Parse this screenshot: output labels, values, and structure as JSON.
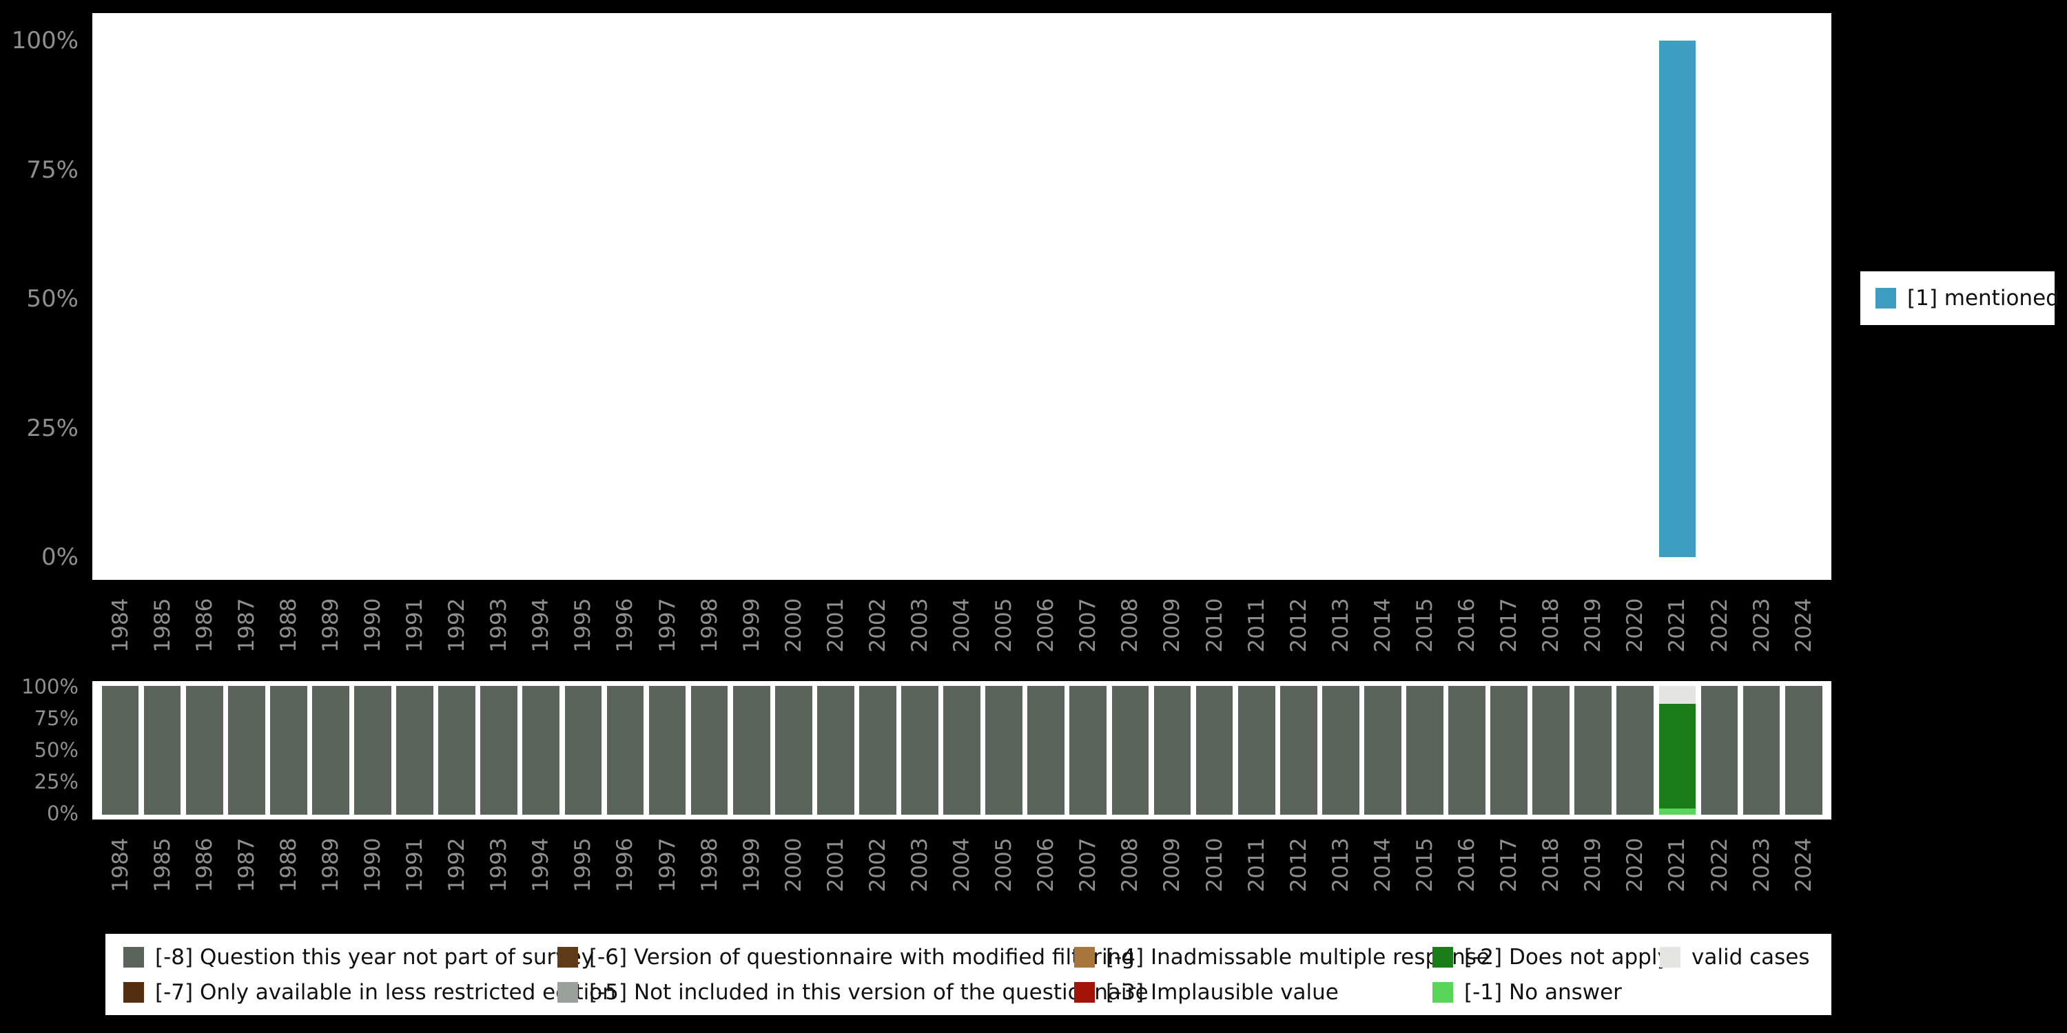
{
  "style": {
    "background": "#000000",
    "panel_background": "#ffffff",
    "axis_text_color": "#8f8f8f",
    "bar_teal": "#3d9ec1"
  },
  "right_legend": {
    "items": [
      {
        "label": "[1] mentioned",
        "color": "#3d9ec1"
      }
    ]
  },
  "bottom_legend": {
    "items": [
      {
        "label": "[-8] Question this year not part of survey",
        "color": "#5a645b"
      },
      {
        "label": "[-7] Only available in less restricted edition",
        "color": "#542e10"
      },
      {
        "label": "[-6] Version of questionnaire with modified filtering",
        "color": "#5e3a17"
      },
      {
        "label": "[-5] Not included in this version of the questionnaire",
        "color": "#9aa09a"
      },
      {
        "label": "[-4] Inadmissable multiple response",
        "color": "#a6763d"
      },
      {
        "label": "[-3] Implausible value",
        "color": "#a31208"
      },
      {
        "label": "[-2] Does not apply",
        "color": "#1a7d1a"
      },
      {
        "label": "[-1] No answer",
        "color": "#59d659"
      },
      {
        "label": "valid cases",
        "color": "#e4e4e1"
      }
    ]
  },
  "chart_data": [
    {
      "type": "bar",
      "title": "",
      "xlabel": "",
      "ylabel": "",
      "ylim": [
        0,
        100
      ],
      "yticks": [
        "0%",
        "25%",
        "50%",
        "75%",
        "100%"
      ],
      "grid": false,
      "legend_position": "right",
      "x": [
        "1984",
        "1985",
        "1986",
        "1987",
        "1988",
        "1989",
        "1990",
        "1991",
        "1992",
        "1993",
        "1994",
        "1995",
        "1996",
        "1997",
        "1998",
        "1999",
        "2000",
        "2001",
        "2002",
        "2003",
        "2004",
        "2005",
        "2006",
        "2007",
        "2008",
        "2009",
        "2010",
        "2011",
        "2012",
        "2013",
        "2014",
        "2015",
        "2016",
        "2017",
        "2018",
        "2019",
        "2020",
        "2021",
        "2022",
        "2023",
        "2024"
      ],
      "series": [
        {
          "name": "[1] mentioned",
          "color": "#3d9ec1",
          "values": [
            0,
            0,
            0,
            0,
            0,
            0,
            0,
            0,
            0,
            0,
            0,
            0,
            0,
            0,
            0,
            0,
            0,
            0,
            0,
            0,
            0,
            0,
            0,
            0,
            0,
            0,
            0,
            0,
            0,
            0,
            0,
            0,
            0,
            0,
            0,
            0,
            0,
            100,
            0,
            0,
            0
          ]
        }
      ]
    },
    {
      "type": "bar",
      "stacked": true,
      "title": "",
      "xlabel": "",
      "ylabel": "",
      "ylim": [
        0,
        100
      ],
      "yticks": [
        "0%",
        "25%",
        "50%",
        "75%",
        "100%"
      ],
      "grid": false,
      "legend_position": "bottom",
      "x": [
        "1984",
        "1985",
        "1986",
        "1987",
        "1988",
        "1989",
        "1990",
        "1991",
        "1992",
        "1993",
        "1994",
        "1995",
        "1996",
        "1997",
        "1998",
        "1999",
        "2000",
        "2001",
        "2002",
        "2003",
        "2004",
        "2005",
        "2006",
        "2007",
        "2008",
        "2009",
        "2010",
        "2011",
        "2012",
        "2013",
        "2014",
        "2015",
        "2016",
        "2017",
        "2018",
        "2019",
        "2020",
        "2021",
        "2022",
        "2023",
        "2024"
      ],
      "default_stack": [
        {
          "name": "[-8] Question this year not part of survey",
          "value": 100,
          "color": "#5a645b"
        }
      ],
      "exceptions": {
        "2021": [
          {
            "name": "[-1] No answer",
            "value": 5,
            "color": "#59d659"
          },
          {
            "name": "[-2] Does not apply",
            "value": 81,
            "color": "#1a7d1a"
          },
          {
            "name": "valid cases",
            "value": 14,
            "color": "#e4e4e1"
          }
        ]
      }
    }
  ]
}
